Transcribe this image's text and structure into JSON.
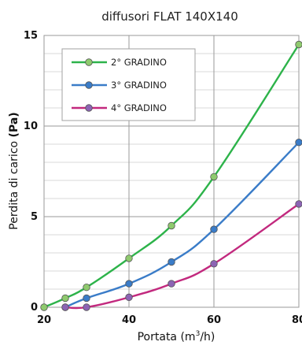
{
  "chart_data": {
    "type": "line",
    "title": "diffusori FLAT 140X140",
    "xlabel": "Portata",
    "xlabel_unit": "(m",
    "xlabel_sup": "3",
    "xlabel_unit_end": "/h)",
    "ylabel": "Perdita di carico",
    "ylabel_unit": "(Pa)",
    "xlim": [
      20,
      80
    ],
    "ylim": [
      0,
      15
    ],
    "x_ticks": [
      20,
      40,
      60,
      80
    ],
    "y_ticks": [
      0,
      5,
      10,
      15
    ],
    "x_ticks_labels": [
      "20",
      "40",
      "60",
      "80"
    ],
    "y_ticks_labels": [
      "0",
      "5",
      "10",
      "15"
    ],
    "grid": true,
    "legend_position": "top-left",
    "series": [
      {
        "name": "2° GRADINO",
        "color": "#2db34a",
        "marker_fill": "#8fca6e",
        "x": [
          20,
          25,
          30,
          40,
          50,
          60,
          80
        ],
        "y": [
          0,
          0.5,
          1.1,
          2.7,
          4.5,
          7.2,
          14.5
        ]
      },
      {
        "name": "3° GRADINO",
        "color": "#3a7cc8",
        "marker_fill": "#3a7cc8",
        "x": [
          25,
          30,
          40,
          50,
          60,
          80
        ],
        "y": [
          0,
          0.5,
          1.3,
          2.5,
          4.3,
          9.1
        ]
      },
      {
        "name": "4° GRADINO",
        "color": "#c2297e",
        "marker_fill": "#8c64b4",
        "x": [
          25,
          30,
          40,
          50,
          60,
          80
        ],
        "y": [
          0,
          0,
          0.55,
          1.3,
          2.4,
          5.7
        ]
      }
    ]
  }
}
